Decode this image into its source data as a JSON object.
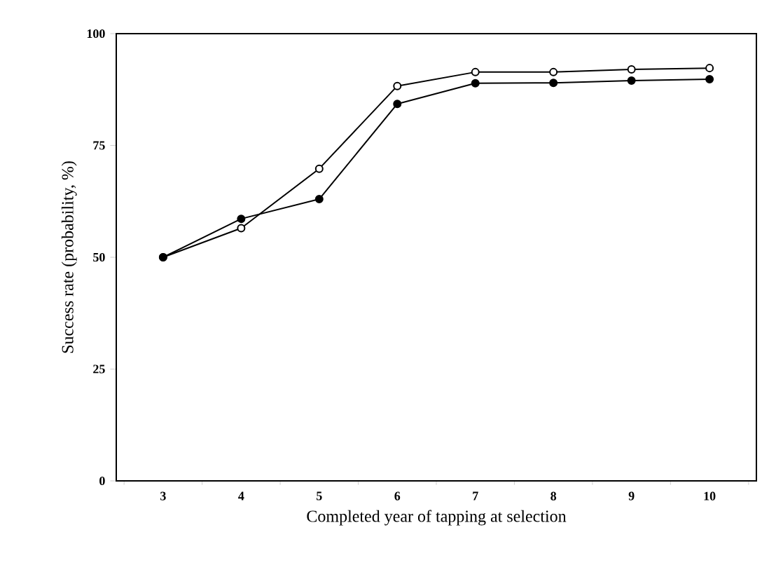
{
  "chart_data": {
    "type": "line",
    "xlabel": "Completed year of tapping at selection",
    "ylabel": "Success rate (probability, %)",
    "categories": [
      "3",
      "4",
      "5",
      "6",
      "7",
      "8",
      "9",
      "10"
    ],
    "series": [
      {
        "color": "#000000",
        "values": [
          50,
          56.5,
          69.8,
          88.3,
          91.4,
          91.4,
          92,
          92.3
        ]
      },
      {
        "color": "#000000",
        "values": [
          50,
          58.6,
          63,
          84.3,
          88.9,
          89,
          89.5,
          89.8
        ]
      }
    ],
    "ylim": [
      0,
      100
    ],
    "yticks": [
      0,
      25,
      50,
      75,
      100
    ],
    "grid": false,
    "marker": "circle",
    "line_style": "solid"
  }
}
